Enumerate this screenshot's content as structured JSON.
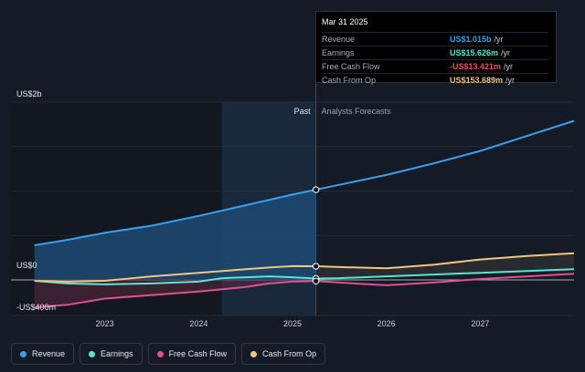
{
  "chart_data": {
    "type": "line",
    "y_axis": {
      "top_label": "US$2b",
      "zero_label": "US$0",
      "bottom_label": "-US$400m",
      "ylim": [
        -400,
        2000
      ]
    },
    "x_axis": {
      "tick_labels": [
        "2023",
        "2024",
        "2025",
        "2026",
        "2027"
      ]
    },
    "regions": {
      "past_label": "Past",
      "forecast_label": "Analysts Forecasts"
    },
    "series": [
      {
        "name": "Revenue",
        "color": "#3a9ff0",
        "points": [
          [
            2022.25,
            390
          ],
          [
            2022.6,
            450
          ],
          [
            2023.0,
            530
          ],
          [
            2023.5,
            610
          ],
          [
            2024.0,
            720
          ],
          [
            2024.5,
            840
          ],
          [
            2025.0,
            960
          ],
          [
            2025.25,
            1015
          ],
          [
            2025.5,
            1070
          ],
          [
            2026.0,
            1180
          ],
          [
            2026.5,
            1310
          ],
          [
            2027.0,
            1450
          ],
          [
            2027.5,
            1620
          ],
          [
            2028.0,
            1790
          ]
        ]
      },
      {
        "name": "Earnings",
        "color": "#58e6d2",
        "points": [
          [
            2022.25,
            -10
          ],
          [
            2022.6,
            -40
          ],
          [
            2023.0,
            -50
          ],
          [
            2023.5,
            -40
          ],
          [
            2024.0,
            -20
          ],
          [
            2024.25,
            20
          ],
          [
            2024.5,
            30
          ],
          [
            2024.75,
            40
          ],
          [
            2025.0,
            30
          ],
          [
            2025.25,
            15.6
          ],
          [
            2025.5,
            20
          ],
          [
            2026.0,
            40
          ],
          [
            2026.5,
            60
          ],
          [
            2027.0,
            80
          ],
          [
            2027.5,
            100
          ],
          [
            2028.0,
            120
          ]
        ]
      },
      {
        "name": "Free Cash Flow",
        "color": "#e0508c",
        "points": [
          [
            2022.25,
            -310
          ],
          [
            2022.6,
            -280
          ],
          [
            2023.0,
            -210
          ],
          [
            2023.5,
            -170
          ],
          [
            2024.0,
            -130
          ],
          [
            2024.5,
            -80
          ],
          [
            2024.75,
            -40
          ],
          [
            2025.0,
            -20
          ],
          [
            2025.25,
            -13.4
          ],
          [
            2025.5,
            -30
          ],
          [
            2026.0,
            -60
          ],
          [
            2026.5,
            -30
          ],
          [
            2027.0,
            10
          ],
          [
            2027.5,
            40
          ],
          [
            2028.0,
            70
          ]
        ]
      },
      {
        "name": "Cash From Op",
        "color": "#f1c57e",
        "points": [
          [
            2022.25,
            -10
          ],
          [
            2022.6,
            -20
          ],
          [
            2023.0,
            -10
          ],
          [
            2023.5,
            40
          ],
          [
            2024.0,
            80
          ],
          [
            2024.5,
            120
          ],
          [
            2024.75,
            140
          ],
          [
            2025.0,
            155
          ],
          [
            2025.25,
            153.7
          ],
          [
            2025.5,
            145
          ],
          [
            2026.0,
            130
          ],
          [
            2026.5,
            170
          ],
          [
            2027.0,
            230
          ],
          [
            2027.5,
            270
          ],
          [
            2028.0,
            300
          ]
        ]
      }
    ],
    "tooltip": {
      "date": "Mar 31 2025",
      "rows": [
        {
          "name": "Revenue",
          "value": "US$1.015b",
          "unit": "/yr",
          "color": "#3a9ff0"
        },
        {
          "name": "Earnings",
          "value": "US$15.626m",
          "unit": "/yr",
          "color": "#58e6d2"
        },
        {
          "name": "Free Cash Flow",
          "value": "-US$13.421m",
          "unit": "/yr",
          "color": "#f0505c"
        },
        {
          "name": "Cash From Op",
          "value": "US$153.689m",
          "unit": "/yr",
          "color": "#f1c57e"
        }
      ]
    },
    "legend": [
      {
        "label": "Revenue",
        "color": "#3a9ff0"
      },
      {
        "label": "Earnings",
        "color": "#58e6d2"
      },
      {
        "label": "Free Cash Flow",
        "color": "#e0508c"
      },
      {
        "label": "Cash From Op",
        "color": "#f1c57e"
      }
    ],
    "grid": true,
    "highlight_x": 2025.25,
    "past_start_x": 2024.25
  }
}
